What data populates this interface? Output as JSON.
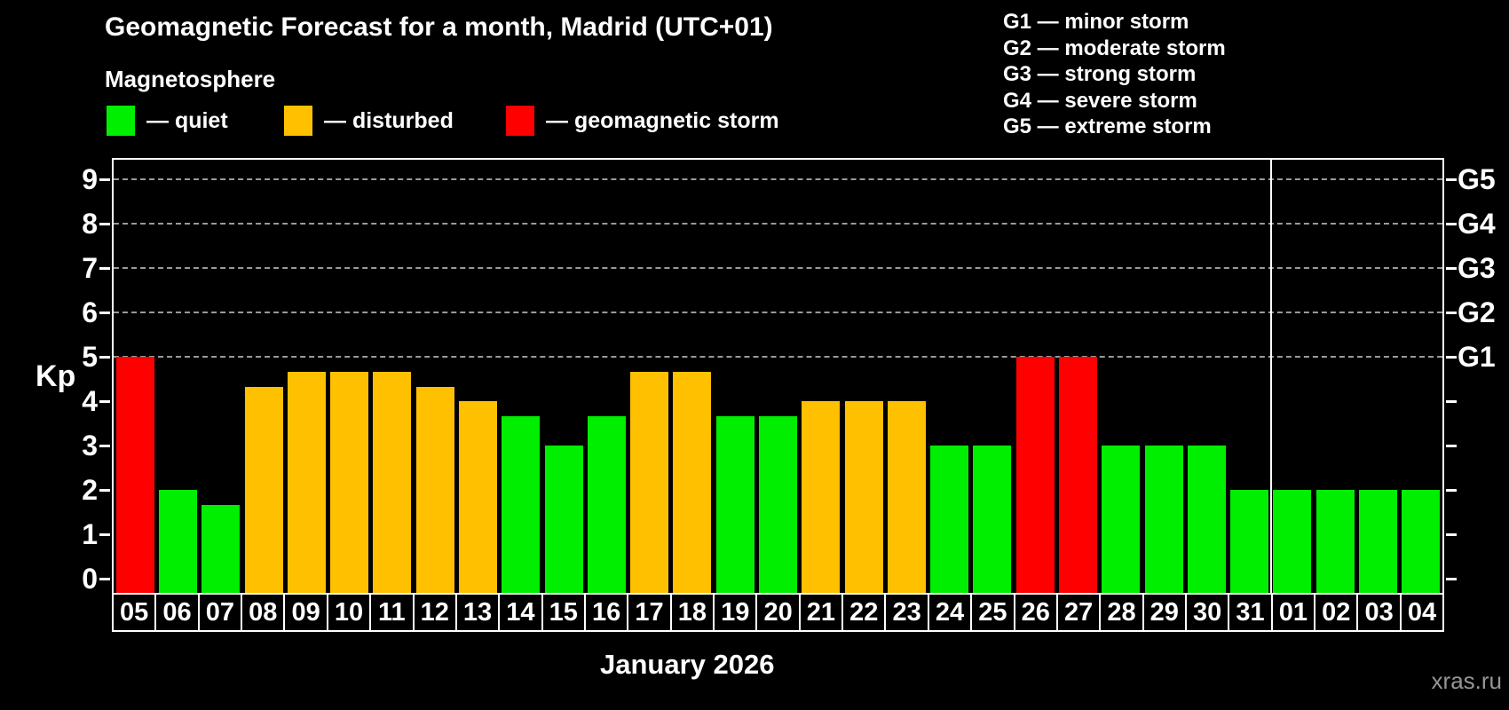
{
  "header": {
    "title": "Geomagnetic Forecast for a month, Madrid (UTC+01)",
    "subtitle": "Magnetosphere"
  },
  "legend": {
    "items": [
      {
        "key": "quiet",
        "label": "— quiet"
      },
      {
        "key": "disturbed",
        "label": "— disturbed"
      },
      {
        "key": "storm",
        "label": "— geomagnetic storm"
      }
    ]
  },
  "g_legend": {
    "lines": [
      "G1 — minor storm",
      "G2 — moderate storm",
      "G3 — strong storm",
      "G4 — severe storm",
      "G5 — extreme storm"
    ]
  },
  "chart_data": {
    "type": "bar",
    "title": "Geomagnetic Forecast for a month, Madrid (UTC+01)",
    "xlabel": "January 2026",
    "ylabel": "Kp",
    "ylim": [
      0,
      9
    ],
    "x": [
      "05",
      "06",
      "07",
      "08",
      "09",
      "10",
      "11",
      "12",
      "13",
      "14",
      "15",
      "16",
      "17",
      "18",
      "19",
      "20",
      "21",
      "22",
      "23",
      "24",
      "25",
      "26",
      "27",
      "28",
      "29",
      "30",
      "31",
      "01",
      "02",
      "03",
      "04"
    ],
    "values": [
      5.0,
      2.0,
      1.67,
      4.33,
      4.67,
      4.67,
      4.67,
      4.33,
      4.0,
      3.67,
      3.0,
      3.67,
      4.67,
      4.67,
      3.67,
      3.67,
      4.0,
      4.0,
      4.0,
      3.0,
      3.0,
      5.0,
      5.0,
      3.0,
      3.0,
      3.0,
      2.0,
      2.0,
      2.0,
      2.0,
      2.0
    ],
    "levels": [
      "storm",
      "quiet",
      "quiet",
      "disturbed",
      "disturbed",
      "disturbed",
      "disturbed",
      "disturbed",
      "disturbed",
      "quiet",
      "quiet",
      "quiet",
      "disturbed",
      "disturbed",
      "quiet",
      "quiet",
      "disturbed",
      "disturbed",
      "disturbed",
      "quiet",
      "quiet",
      "storm",
      "storm",
      "quiet",
      "quiet",
      "quiet",
      "quiet",
      "quiet",
      "quiet",
      "quiet",
      "quiet"
    ],
    "colors": {
      "quiet": "#00ee00",
      "disturbed": "#ffc000",
      "storm": "#ff0000"
    },
    "yticks": [
      0,
      1,
      2,
      3,
      4,
      5,
      6,
      7,
      8,
      9
    ],
    "gridlines_at": [
      5,
      6,
      7,
      8,
      9
    ],
    "right_axis": [
      {
        "kp": 5,
        "label": "G1"
      },
      {
        "kp": 6,
        "label": "G2"
      },
      {
        "kp": 7,
        "label": "G3"
      },
      {
        "kp": 8,
        "label": "G4"
      },
      {
        "kp": 9,
        "label": "G5"
      }
    ],
    "separator_after_index": 26,
    "legend_position": "top"
  },
  "footer": {
    "month_label": "January 2026",
    "watermark": "xras.ru"
  }
}
